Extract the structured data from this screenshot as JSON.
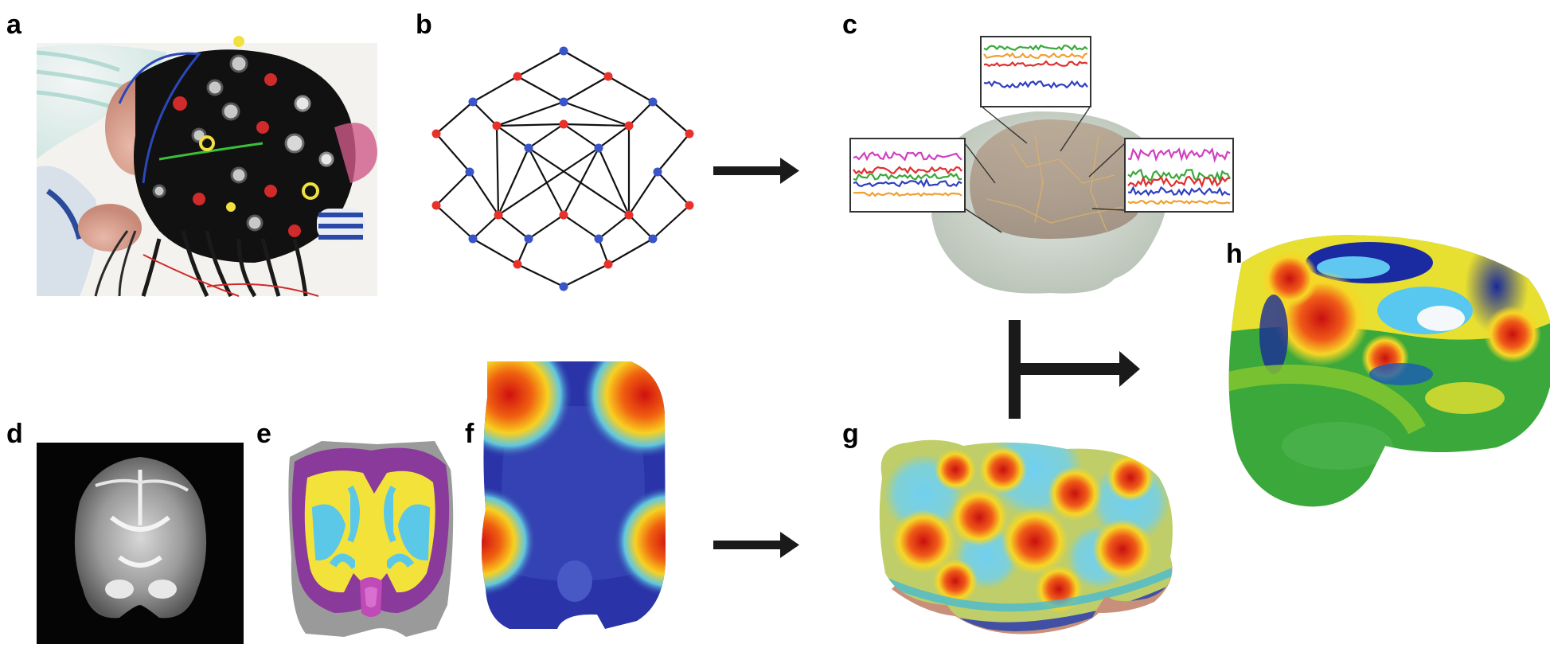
{
  "figure": {
    "panels": [
      {
        "id": "a",
        "label": "a",
        "content": "eeg-cap-photo"
      },
      {
        "id": "b",
        "label": "b",
        "content": "electrode-network-graph"
      },
      {
        "id": "c",
        "label": "c",
        "content": "head-model-with-timeseries"
      },
      {
        "id": "d",
        "label": "d",
        "content": "mri-coronal-slice"
      },
      {
        "id": "e",
        "label": "e",
        "content": "tissue-segmentation"
      },
      {
        "id": "f",
        "label": "f",
        "content": "sensitivity-map"
      },
      {
        "id": "g",
        "label": "g",
        "content": "cortical-surface-map"
      },
      {
        "id": "h",
        "label": "h",
        "content": "inflated-cortex-map"
      }
    ],
    "colors": {
      "node_red": "#e8312a",
      "node_blue": "#3a55c8",
      "arrow": "#1a1a1a",
      "segmentation_purple": "#8a3a9a",
      "segmentation_yellow": "#f2e23a",
      "segmentation_cyan": "#5cc8e8",
      "segmentation_gray": "#9a9a9a",
      "sensitivity_blue": "#2a33a8",
      "timeseries_magenta": "#d040c0",
      "timeseries_green": "#3aa83a",
      "timeseries_red": "#e03030",
      "timeseries_blue": "#3040c0",
      "timeseries_orange": "#f0a030"
    },
    "icons": [
      "right-arrow-icon",
      "right-arrow-icon",
      "branch-arrow-icon"
    ]
  }
}
